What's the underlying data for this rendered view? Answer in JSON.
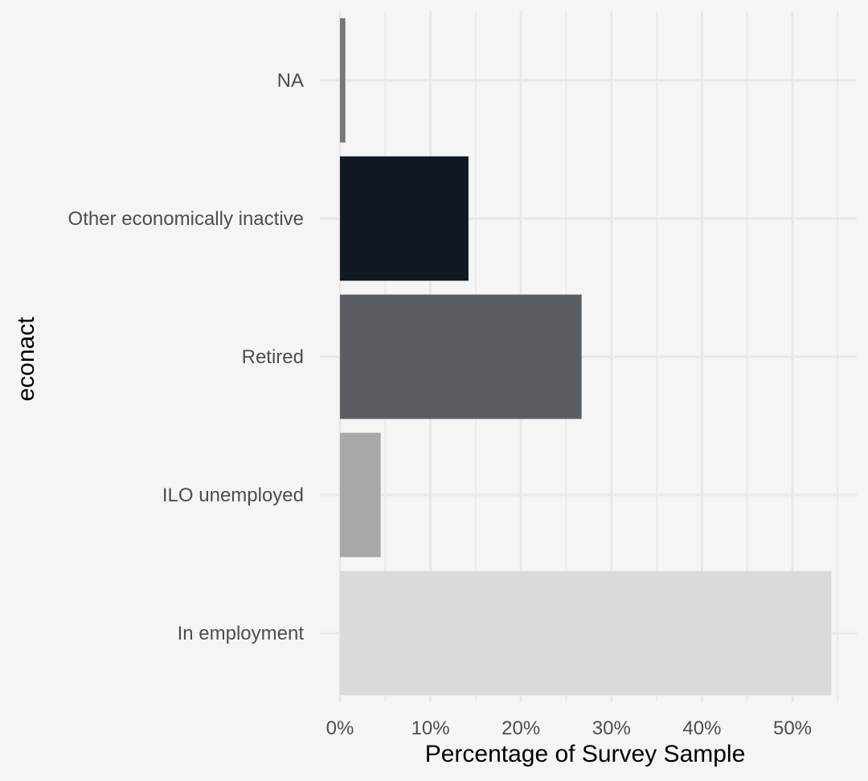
{
  "chart_data": {
    "type": "bar",
    "orientation": "horizontal",
    "title": "",
    "xlabel": "Percentage of Survey Sample",
    "ylabel": "econact",
    "categories": [
      "In employment",
      "ILO unemployed",
      "Retired",
      "Other economically inactive",
      "NA"
    ],
    "values": [
      54.3,
      4.5,
      26.7,
      14.2,
      0.6
    ],
    "colors": [
      "#dadada",
      "#a7a8ab",
      "#5a5d62",
      "#111820",
      "#777777"
    ],
    "xlim": [
      0,
      57
    ],
    "xticks": [
      0,
      10,
      20,
      30,
      40,
      50
    ],
    "xtick_labels": [
      "0%",
      "10%",
      "20%",
      "30%",
      "40%",
      "50%"
    ],
    "grid": true,
    "legend": "none",
    "background": "#f5f5f5",
    "grid_color": "#e8e8e8"
  }
}
